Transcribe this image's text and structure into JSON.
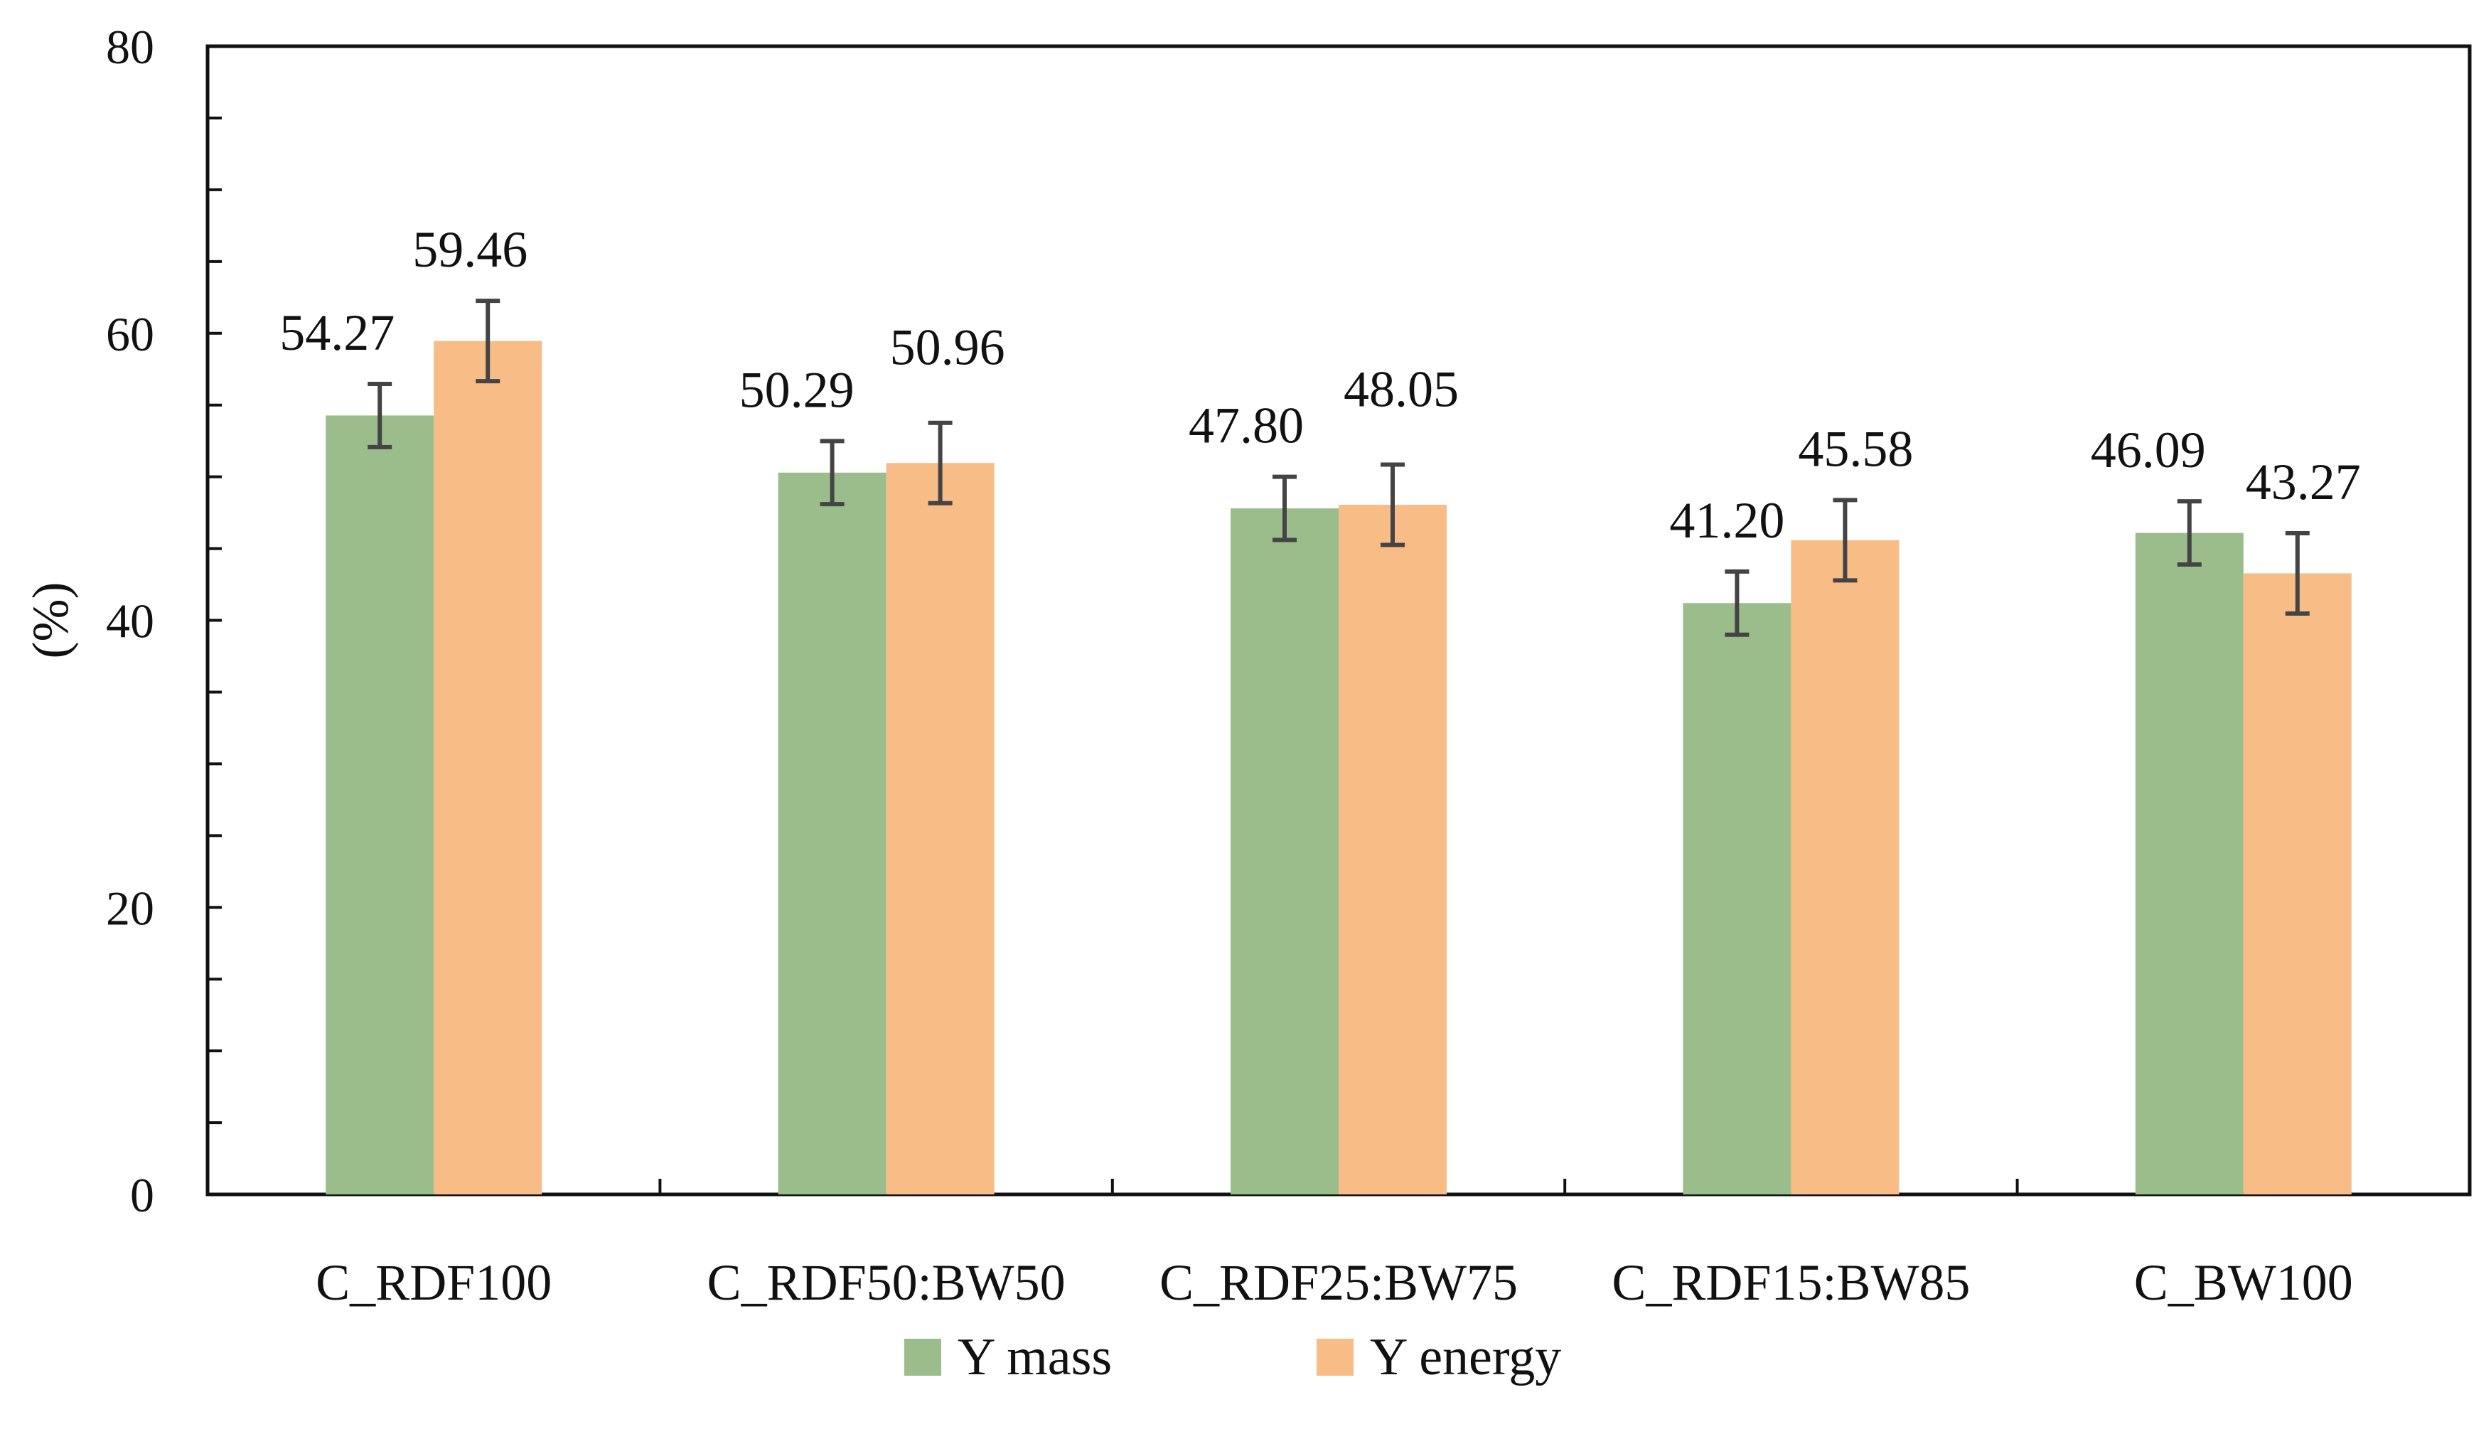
{
  "chart_data": {
    "type": "bar",
    "title": "",
    "xlabel": "",
    "ylabel": "(%)",
    "ylim": [
      0,
      80
    ],
    "yticks": [
      0,
      20,
      40,
      60,
      80
    ],
    "grid": false,
    "legend_position": "bottom-center",
    "categories": [
      "C_RDF100",
      "C_RDF50:BW50",
      "C_RDF25:BW75",
      "C_RDF15:BW85",
      "C_BW100"
    ],
    "series": [
      {
        "name": "Y mass",
        "color": "#9bbd8b",
        "values": [
          54.27,
          50.29,
          47.8,
          41.2,
          46.09
        ],
        "errors": [
          2.2,
          2.2,
          2.2,
          2.2,
          2.2
        ],
        "value_labels": [
          "54.27",
          "50.29",
          "47.80",
          "41.20",
          "46.09"
        ]
      },
      {
        "name": "Y energy",
        "color": "#f8bc87",
        "values": [
          59.46,
          50.96,
          48.05,
          45.58,
          43.27
        ],
        "errors": [
          2.8,
          2.8,
          2.8,
          2.8,
          2.8
        ],
        "value_labels": [
          "59.46",
          "50.96",
          "48.05",
          "45.58",
          "43.27"
        ]
      }
    ]
  }
}
